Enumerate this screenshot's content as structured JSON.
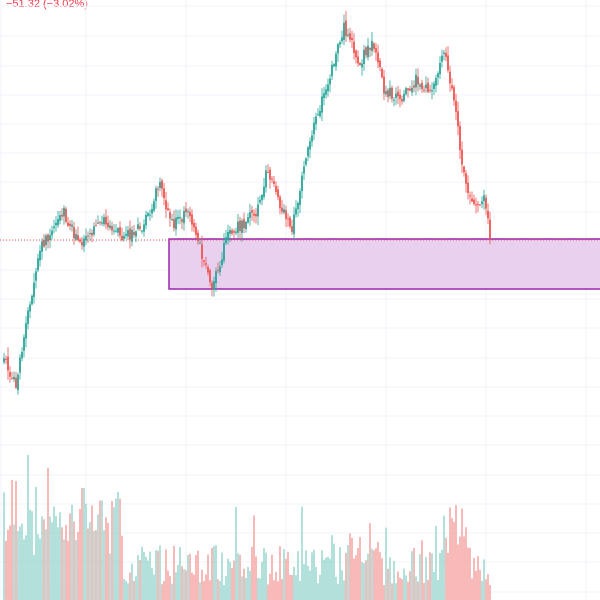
{
  "header": {
    "change_text": "−51.32 (−3.02%)"
  },
  "colors": {
    "up": "#26a69a",
    "down": "#ef5350",
    "volume_up": "#9fd9d1",
    "volume_down": "#f5a9a8",
    "grid": "#f0f3fa",
    "zone_fill": "#e9d0ef",
    "zone_border": "#9c27b0",
    "price_line": "#ef5350",
    "change_text": "#f23645"
  },
  "chart_data": {
    "type": "candlestick",
    "grid": true,
    "show_tick_labels": false,
    "horizontal_price_line": {
      "value": 1640,
      "style": "dotted"
    },
    "zone": {
      "type": "rectangle",
      "price_top": 1641,
      "price_bottom": 1591,
      "start_index": 83
    },
    "ohlc": [],
    "volume": []
  }
}
